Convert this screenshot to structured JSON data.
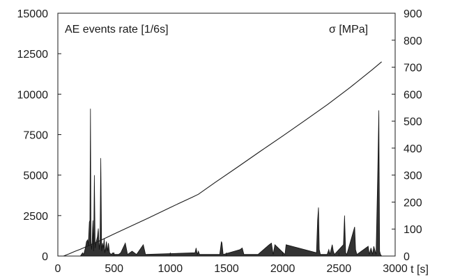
{
  "chart_data": {
    "type": "area",
    "xlabel": "t [s]",
    "x_range": [
      0,
      3000
    ],
    "x_ticks": [
      0,
      500,
      1000,
      1500,
      2000,
      2500,
      3000
    ],
    "y_left_range": [
      0,
      15000
    ],
    "y_left_ticks": [
      0,
      2500,
      5000,
      7500,
      10000,
      12500,
      15000
    ],
    "y_right_range": [
      0,
      900
    ],
    "y_right_ticks": [
      0,
      100,
      200,
      300,
      400,
      500,
      600,
      700,
      800,
      900
    ],
    "grid": false,
    "legend": "none",
    "series": [
      {
        "name": "AE events rate [1/6s]",
        "axis": "left",
        "render": "filled-spikes",
        "color": "#333333",
        "x": [
          200,
          220,
          230,
          245,
          255,
          265,
          270,
          280,
          285,
          290,
          295,
          300,
          305,
          312,
          318,
          325,
          332,
          338,
          345,
          352,
          360,
          368,
          375,
          382,
          390,
          398,
          405,
          412,
          418,
          425,
          432,
          440,
          450,
          460,
          475,
          490,
          500,
          520,
          540,
          560,
          600,
          620,
          660,
          700,
          760,
          780,
          1220,
          1230,
          1240,
          1250,
          1260,
          1280,
          1440,
          1455,
          1460,
          1470,
          1620,
          1640,
          1655,
          1670,
          1780,
          1880,
          1900,
          1915,
          1930,
          2020,
          2030,
          2300,
          2310,
          2318,
          2325,
          2335,
          2395,
          2410,
          2420,
          2440,
          2450,
          2460,
          2540,
          2550,
          2560,
          2570,
          2640,
          2648,
          2660,
          2760,
          2770,
          2785,
          2800,
          2810,
          2830,
          2845,
          2855,
          2862,
          2870,
          2880
        ],
        "y": [
          0,
          200,
          100,
          500,
          900,
          1000,
          600,
          2100,
          2200,
          9100,
          800,
          400,
          900,
          2200,
          300,
          5000,
          500,
          800,
          1000,
          1200,
          1700,
          400,
          900,
          6050,
          300,
          800,
          500,
          1100,
          200,
          500,
          900,
          300,
          800,
          200,
          100,
          200,
          100,
          100,
          100,
          200,
          800,
          100,
          300,
          100,
          700,
          100,
          200,
          500,
          100,
          300,
          100,
          100,
          100,
          900,
          800,
          100,
          400,
          500,
          100,
          100,
          100,
          700,
          800,
          100,
          700,
          100,
          700,
          200,
          2200,
          3000,
          400,
          100,
          100,
          400,
          100,
          700,
          300,
          100,
          700,
          2500,
          200,
          100,
          1800,
          400,
          100,
          600,
          100,
          500,
          100,
          600,
          100,
          5100,
          9000,
          300,
          100,
          0
        ]
      },
      {
        "name": "σ [MPa]",
        "axis": "right",
        "render": "line",
        "color": "#1a1a1a",
        "x": [
          50,
          100,
          150,
          200,
          250,
          300,
          350,
          400,
          450,
          500,
          600,
          800,
          1000,
          1200,
          1250,
          1400,
          1600,
          1800,
          2000,
          2200,
          2400,
          2600,
          2800,
          2880
        ],
        "y": [
          0,
          8,
          17,
          25,
          34,
          43,
          52,
          62,
          72,
          82,
          101,
          140,
          180,
          219,
          229,
          273,
          330,
          388,
          445,
          503,
          562,
          625,
          692,
          720
        ]
      }
    ]
  }
}
